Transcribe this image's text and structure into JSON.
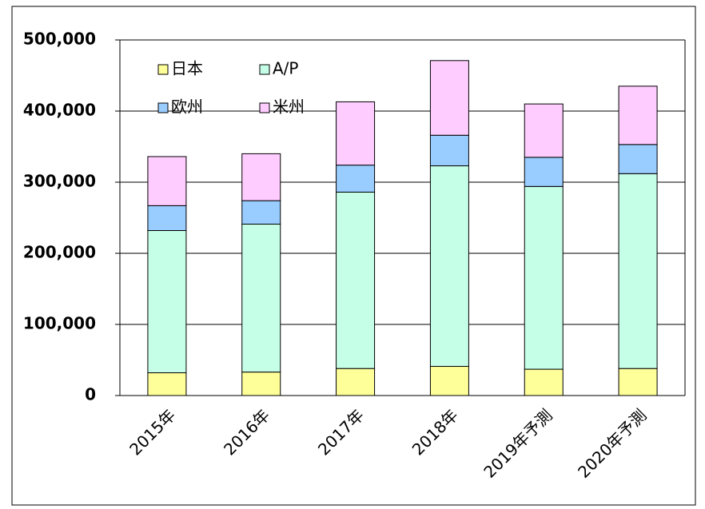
{
  "chart_data": {
    "type": "stacked_bar",
    "categories": [
      "2015年",
      "2016年",
      "2017年",
      "2018年",
      "2019年予測",
      "2020年予測"
    ],
    "series": [
      {
        "name": "日本",
        "color": "#ffff99",
        "values": [
          32000,
          33000,
          38000,
          41000,
          37000,
          38000
        ]
      },
      {
        "name": "A/P",
        "color": "#c6ffe8",
        "values": [
          200000,
          208000,
          248000,
          282000,
          257000,
          274000
        ]
      },
      {
        "name": "欧州",
        "color": "#99ccff",
        "values": [
          35000,
          33000,
          38000,
          43000,
          41000,
          41000
        ]
      },
      {
        "name": "米州",
        "color": "#ffccff",
        "values": [
          69000,
          66000,
          89000,
          105000,
          75000,
          82000
        ]
      }
    ],
    "ylim": [
      0,
      500000
    ],
    "yticks": [
      0,
      {
        "value": 100000,
        "label": "100,000"
      },
      {
        "value": 200000,
        "label": "200,000"
      },
      {
        "value": 300000,
        "label": "300,000"
      },
      {
        "value": 400000,
        "label": "400,000"
      },
      {
        "value": 500000,
        "label": "500,000"
      }
    ],
    "grid": true,
    "legend": "top-left"
  }
}
